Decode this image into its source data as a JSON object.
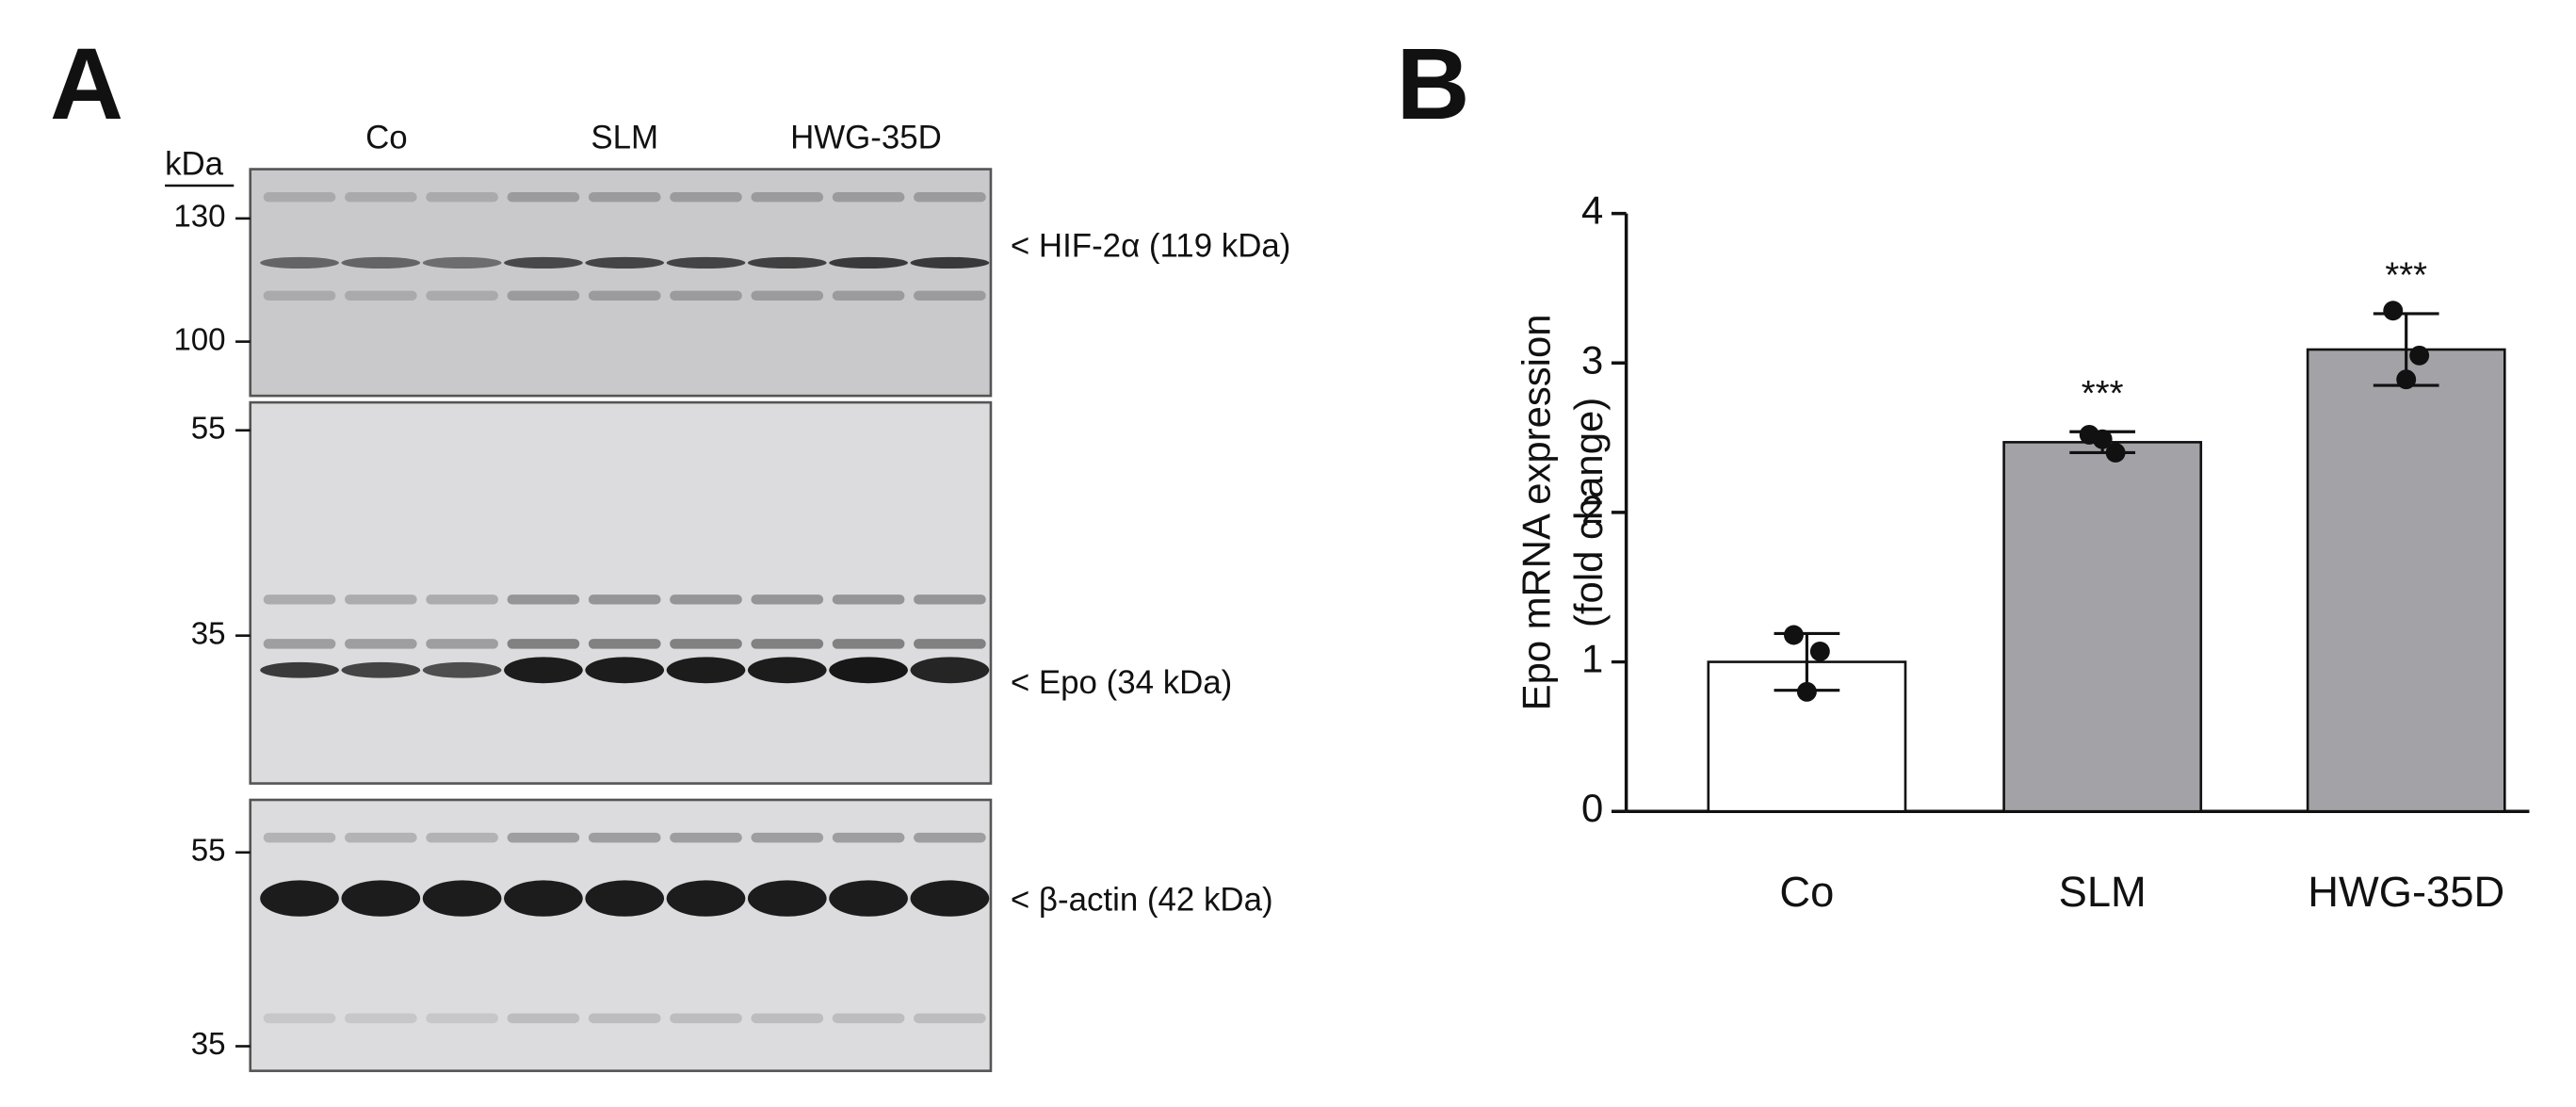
{
  "panel_a": {
    "letter": "A",
    "unit": "kDa",
    "groups": [
      "Co",
      "SLM",
      "HWG-35D"
    ],
    "blots": [
      {
        "markers": [
          130,
          100
        ],
        "label": "< HIF-2α (119 kDa)"
      },
      {
        "markers": [
          55,
          35
        ],
        "label": "< Epo (34 kDa)"
      },
      {
        "markers": [
          55,
          35
        ],
        "label": "< β-actin (42 kDa)"
      }
    ]
  },
  "chart_data": {
    "type": "bar",
    "letter": "B",
    "ylabel": [
      "Epo mRNA expression",
      "(fold change)"
    ],
    "categories": [
      "Co",
      "SLM",
      "HWG-35D"
    ],
    "values": [
      1.0,
      2.47,
      3.09
    ],
    "errors": [
      0.19,
      0.07,
      0.24
    ],
    "points": [
      [
        1.18,
        1.07,
        0.8
      ],
      [
        2.52,
        2.4,
        2.49
      ],
      [
        3.35,
        3.05,
        2.89
      ]
    ],
    "colors": [
      "#ffffff",
      "#a3a3a7",
      "#a3a3a7"
    ],
    "annotations": [
      null,
      "***",
      "***"
    ],
    "ylim": [
      0,
      4
    ],
    "yticks": [
      0,
      1,
      2,
      3,
      4
    ]
  }
}
